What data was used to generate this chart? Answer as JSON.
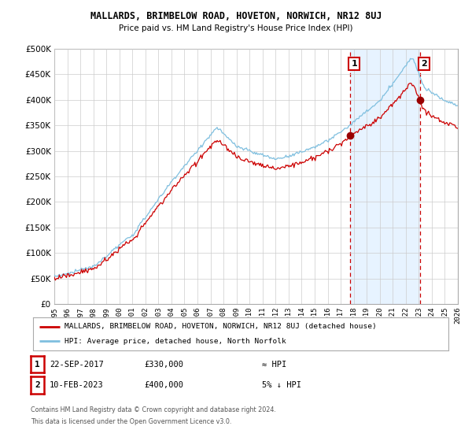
{
  "title": "MALLARDS, BRIMBELOW ROAD, HOVETON, NORWICH, NR12 8UJ",
  "subtitle": "Price paid vs. HM Land Registry's House Price Index (HPI)",
  "legend_line1": "MALLARDS, BRIMBELOW ROAD, HOVETON, NORWICH, NR12 8UJ (detached house)",
  "legend_line2": "HPI: Average price, detached house, North Norfolk",
  "annotation1_label": "1",
  "annotation1_date": "22-SEP-2017",
  "annotation1_price": "£330,000",
  "annotation1_hpi": "≈ HPI",
  "annotation2_label": "2",
  "annotation2_date": "10-FEB-2023",
  "annotation2_price": "£400,000",
  "annotation2_hpi": "5% ↓ HPI",
  "footnote1": "Contains HM Land Registry data © Crown copyright and database right 2024.",
  "footnote2": "This data is licensed under the Open Government Licence v3.0.",
  "sale1_year": 2017.73,
  "sale1_price": 330000,
  "sale2_year": 2023.11,
  "sale2_price": 400000,
  "hpi_color": "#7fbfdf",
  "price_color": "#cc0000",
  "sale_dot_color": "#990000",
  "vline_color": "#cc0000",
  "shade_color": "#ddeeff",
  "background_color": "#ffffff",
  "grid_color": "#cccccc",
  "ylim_min": 0,
  "ylim_max": 500000,
  "xlim_min": 1995,
  "xlim_max": 2026,
  "ytick_step": 50000
}
